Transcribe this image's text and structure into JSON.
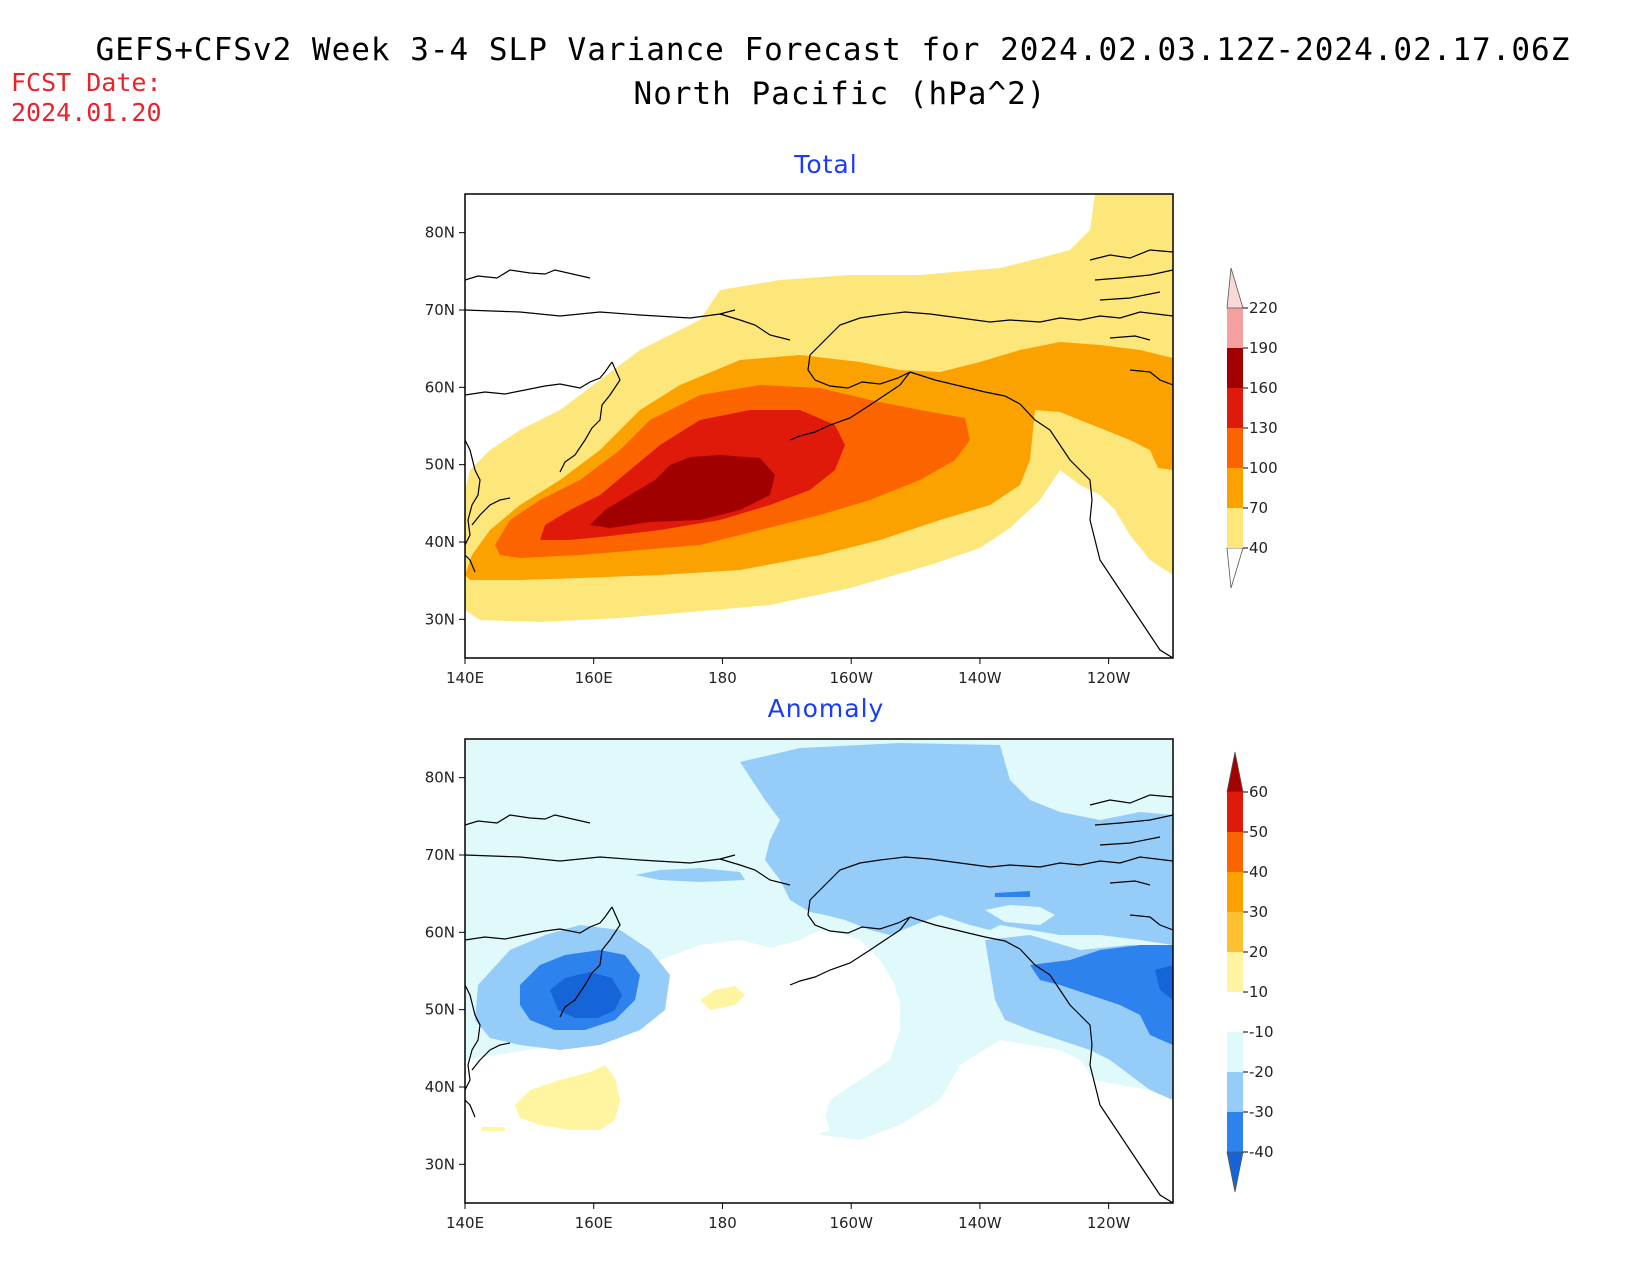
{
  "title_line1": "GEFS+CFSv2 Week 3-4 SLP Variance Forecast for 2024.02.03.12Z-2024.02.17.06Z",
  "title_line2": "North Pacific (hPa^2)",
  "fcst_label": "FCST Date:",
  "fcst_date": "2024.01.20",
  "map": {
    "lon_range": [
      140,
      250
    ],
    "lat_range": [
      25,
      85
    ],
    "lon_ticks": [
      "140E",
      "160E",
      "180",
      "160W",
      "140W",
      "120W"
    ],
    "lat_ticks": [
      "80N",
      "70N",
      "60N",
      "50N",
      "40N",
      "30N"
    ],
    "coastline_color": "#000000"
  },
  "panels": [
    {
      "title": "Total",
      "colorbar": {
        "labels": [
          "40",
          "70",
          "100",
          "130",
          "160",
          "190",
          "220"
        ],
        "colors": [
          "#fde67a",
          "#fca200",
          "#fc6400",
          "#e01a0a",
          "#a00000",
          "#f4a0a0",
          "#fbd8d8"
        ],
        "extend": "both"
      }
    },
    {
      "title": "Anomaly",
      "colorbar": {
        "labels": [
          "60",
          "50",
          "40",
          "30",
          "20",
          "10",
          "-10",
          "-20",
          "-30",
          "-40"
        ],
        "colors_top_to_bottom": [
          "#a50000",
          "#e01a0a",
          "#fc6400",
          "#fca200",
          "#fcc030",
          "#fff5a0",
          "#ffffff",
          "#e0fafc",
          "#96cdf8",
          "#2e82ee",
          "#1565d8"
        ],
        "extend": "both"
      }
    }
  ]
}
